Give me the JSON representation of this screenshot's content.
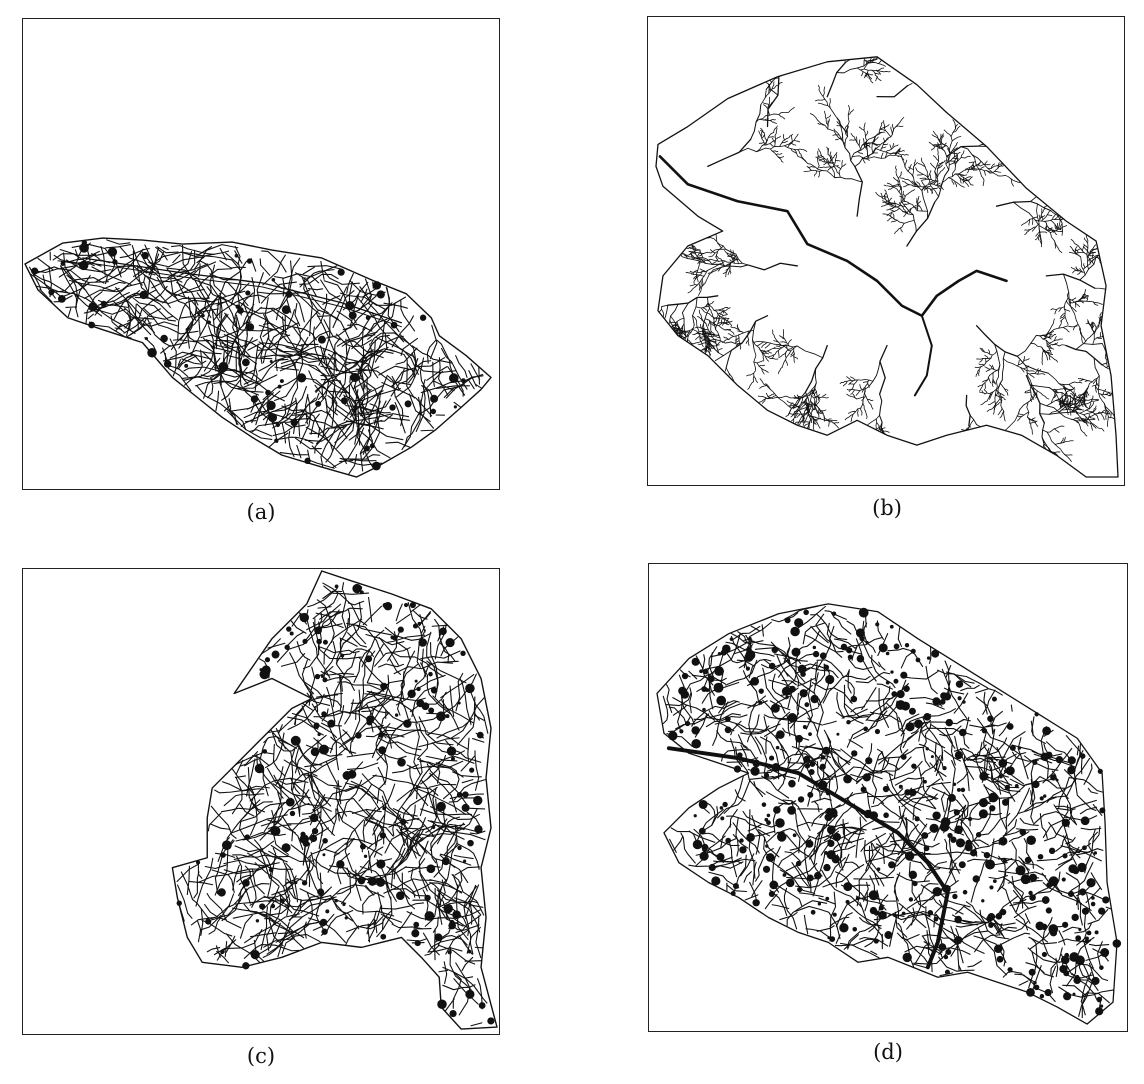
{
  "figure": {
    "panels": [
      {
        "id": "a",
        "caption": "(a)",
        "content": "road-network-map"
      },
      {
        "id": "b",
        "caption": "(b)",
        "content": "river-drainage-map"
      },
      {
        "id": "c",
        "caption": "(c)",
        "content": "road-network-map"
      },
      {
        "id": "d",
        "caption": "(d)",
        "content": "dense-network-map"
      }
    ],
    "stroke_color": "#111111",
    "background_color": "#ffffff"
  }
}
